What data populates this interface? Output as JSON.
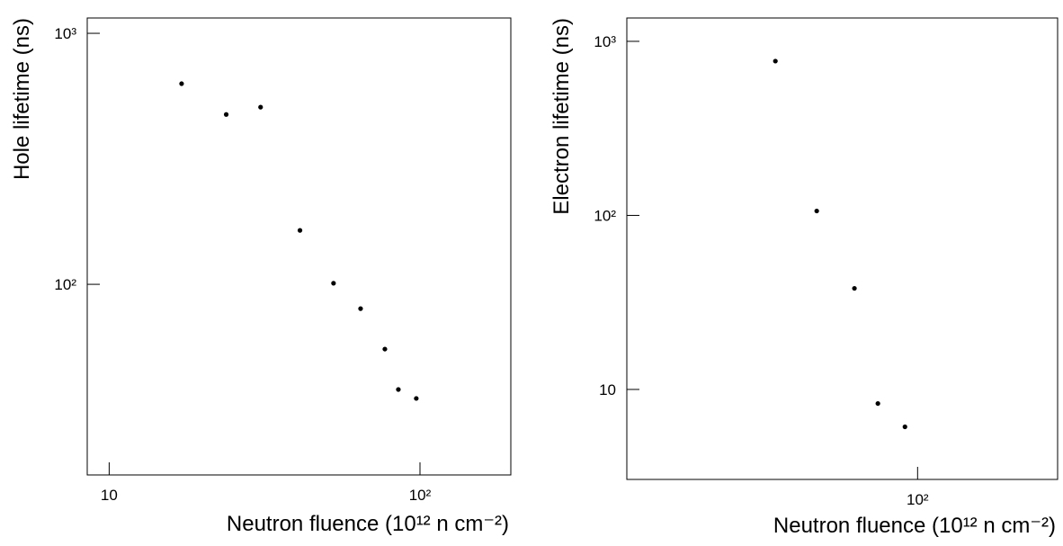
{
  "chart_data": [
    {
      "type": "scatter",
      "log_x": true,
      "log_y": true,
      "color": "#000000",
      "x_label": "Neutron fluence (10¹² n cm⁻²)",
      "y_label": "Hole lifetime (ns)",
      "x": [
        17.1,
        23.8,
        30.7,
        41.1,
        52.7,
        64.4,
        77.1,
        85.2,
        97.3
      ],
      "values": [
        630,
        475,
        508,
        164,
        101,
        80,
        55.2,
        38.1,
        35.1
      ],
      "xlim": [
        8.5,
        196
      ],
      "ylim": [
        17.4,
        1151
      ],
      "xticks": [
        10,
        {
          "value": 100,
          "label": "10²"
        }
      ],
      "yticks": [
        {
          "value": 100,
          "label": "10²"
        },
        {
          "value": 1000,
          "label": "10³"
        }
      ]
    },
    {
      "type": "scatter",
      "log_x": true,
      "log_y": true,
      "color": "#000000",
      "x_label": "Neutron fluence (10¹² n cm⁻²)",
      "y_label": "Electron lifetime (ns)",
      "x": [
        46.4,
        58.0,
        71.1,
        80.7,
        93.4
      ],
      "values": [
        770,
        106,
        38.1,
        8.3,
        6.1
      ],
      "xlim": [
        20.8,
        213
      ],
      "ylim": [
        3.04,
        1362
      ],
      "xticks": [
        {
          "value": 100,
          "label": "10²"
        }
      ],
      "yticks": [
        10,
        {
          "value": 100,
          "label": "10²"
        },
        {
          "value": 1000,
          "label": "10³"
        }
      ]
    }
  ]
}
